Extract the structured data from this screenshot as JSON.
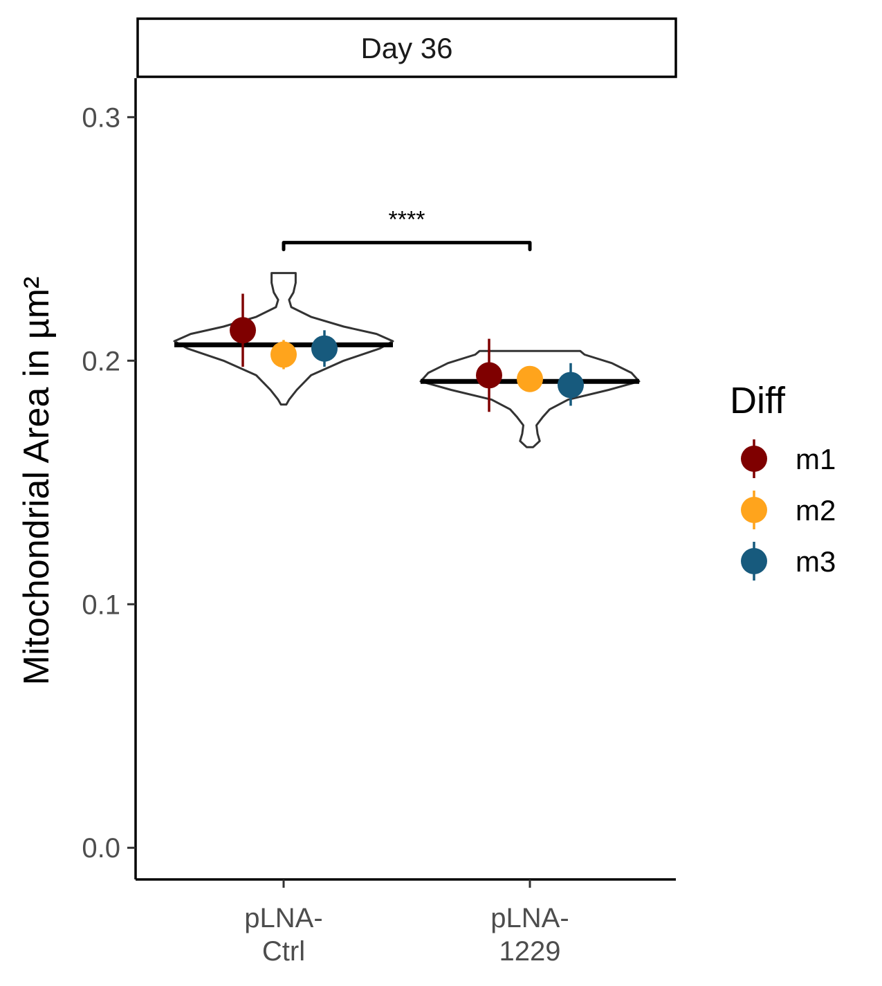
{
  "chart_data": {
    "type": "violin",
    "facet": "Day 36",
    "ylabel": "Mitochondrial Area in µm²",
    "xlabel": "",
    "ylim": [
      -0.013,
      0.316
    ],
    "y_ticks": [
      {
        "value": 0.0,
        "label": "0.0"
      },
      {
        "value": 0.1,
        "label": "0.1"
      },
      {
        "value": 0.2,
        "label": "0.2"
      },
      {
        "value": 0.3,
        "label": "0.3"
      }
    ],
    "categories": [
      {
        "key": "ctrl",
        "label_lines": [
          "pLNA-",
          "Ctrl"
        ]
      },
      {
        "key": "1229",
        "label_lines": [
          "pLNA-",
          "1229"
        ]
      }
    ],
    "legend": {
      "title": "Diff",
      "placement": "right",
      "items": [
        {
          "label": "m1",
          "color": "#7f0000"
        },
        {
          "label": "m2",
          "color": "#ffa41c"
        },
        {
          "label": "m3",
          "color": "#175a7d"
        }
      ]
    },
    "series": [
      {
        "name": "m1",
        "color": "#7f0000",
        "points": [
          {
            "category": "ctrl",
            "mean": 0.2125,
            "low": 0.1975,
            "high": 0.2275
          },
          {
            "category": "1229",
            "mean": 0.194,
            "low": 0.179,
            "high": 0.209
          }
        ]
      },
      {
        "name": "m2",
        "color": "#ffa41c",
        "points": [
          {
            "category": "ctrl",
            "mean": 0.2025,
            "low": 0.1965,
            "high": 0.2085
          },
          {
            "category": "1229",
            "mean": 0.1925,
            "low": 0.1895,
            "high": 0.1955
          }
        ]
      },
      {
        "name": "m3",
        "color": "#175a7d",
        "points": [
          {
            "category": "ctrl",
            "mean": 0.205,
            "low": 0.1975,
            "high": 0.2125
          },
          {
            "category": "1229",
            "mean": 0.19,
            "low": 0.1815,
            "high": 0.199
          }
        ]
      }
    ],
    "medians": [
      {
        "category": "ctrl",
        "value": 0.2065
      },
      {
        "category": "1229",
        "value": 0.1915
      }
    ],
    "violins": [
      {
        "category": "ctrl",
        "profile": [
          [
            0.182,
            0.025
          ],
          [
            0.184,
            0.05
          ],
          [
            0.188,
            0.12
          ],
          [
            0.194,
            0.25
          ],
          [
            0.2,
            0.55
          ],
          [
            0.205,
            0.88
          ],
          [
            0.208,
            1.0
          ],
          [
            0.211,
            0.85
          ],
          [
            0.214,
            0.55
          ],
          [
            0.218,
            0.25
          ],
          [
            0.222,
            0.07
          ],
          [
            0.225,
            0.05
          ],
          [
            0.228,
            0.09
          ],
          [
            0.232,
            0.11
          ],
          [
            0.236,
            0.11
          ]
        ]
      },
      {
        "category": "1229",
        "profile": [
          [
            0.1645,
            0.03
          ],
          [
            0.167,
            0.09
          ],
          [
            0.17,
            0.07
          ],
          [
            0.1735,
            0.06
          ],
          [
            0.177,
            0.12
          ],
          [
            0.18,
            0.18
          ],
          [
            0.184,
            0.35
          ],
          [
            0.188,
            0.72
          ],
          [
            0.1915,
            1.0
          ],
          [
            0.195,
            0.93
          ],
          [
            0.199,
            0.75
          ],
          [
            0.2025,
            0.5
          ],
          [
            0.204,
            0.46
          ]
        ]
      }
    ],
    "significance": {
      "label": "****",
      "from": "ctrl",
      "to": "1229",
      "y": 0.2485
    },
    "grid": false
  }
}
